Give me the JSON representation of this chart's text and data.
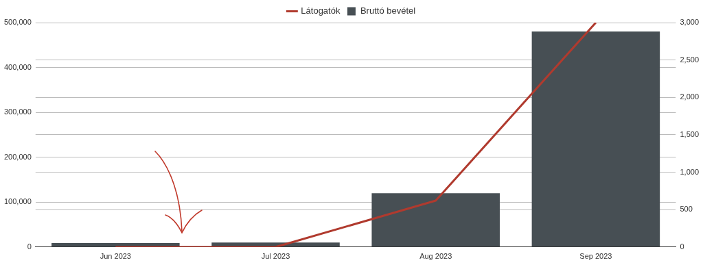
{
  "chart_data": {
    "type": "bar",
    "categories": [
      "Jun 2023",
      "Jul 2023",
      "Aug 2023",
      "Sep 2023"
    ],
    "series": [
      {
        "name": "Látogatók",
        "type": "line",
        "axis": "y2",
        "color": "#b03a2e",
        "values": [
          0,
          0,
          620,
          3000
        ]
      },
      {
        "name": "Bruttó bevétel",
        "color": "#474f54",
        "values": [
          9000,
          10000,
          120000,
          480000
        ]
      }
    ],
    "ylim": [
      0,
      500000
    ],
    "yticks": [
      0,
      {
        "value": 100000,
        "label": "100,000"
      },
      {
        "value": 200000,
        "label": "200,000"
      },
      {
        "value": 300000,
        "label": "300,000"
      },
      {
        "value": 400000,
        "label": "400,000"
      },
      {
        "value": 500000,
        "label": "500,000"
      }
    ],
    "y2lim": [
      0,
      3000
    ],
    "y2ticks": [
      0,
      500,
      {
        "value": 1000,
        "label": "1,000"
      },
      {
        "value": 1500,
        "label": "1,500"
      },
      {
        "value": 2000,
        "label": "2,000"
      },
      {
        "value": 2500,
        "label": "2,500"
      },
      {
        "value": 3000,
        "label": "3,000"
      }
    ],
    "grid": true,
    "legend": "top",
    "marker": "none",
    "line_style": "solid"
  }
}
